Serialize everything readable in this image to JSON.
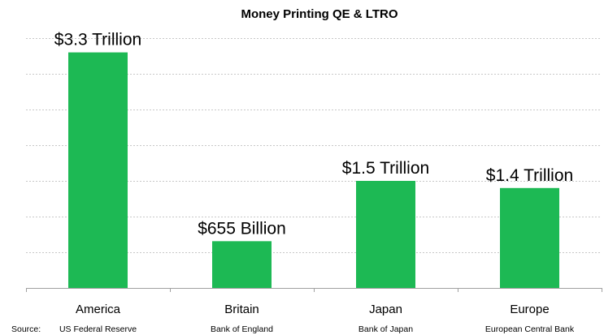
{
  "chart_data": {
    "type": "bar",
    "title": "Money Printing QE & LTRO",
    "categories": [
      "America",
      "Britain",
      "Japan",
      "Europe"
    ],
    "values": [
      3.3,
      0.655,
      1.5,
      1.4
    ],
    "value_unit": "Trillion USD",
    "data_labels": [
      "$3.3 Trillion",
      "$655 Billion",
      "$1.5 Trillion",
      "$1.4 Trillion"
    ],
    "source_label": "Source:",
    "sources": [
      "US Federal Reserve",
      "Bank of England",
      "Bank of Japan",
      "European Central Bank"
    ],
    "ylim": [
      0,
      3.5
    ],
    "grid": true,
    "bar_color": "#1db954"
  }
}
